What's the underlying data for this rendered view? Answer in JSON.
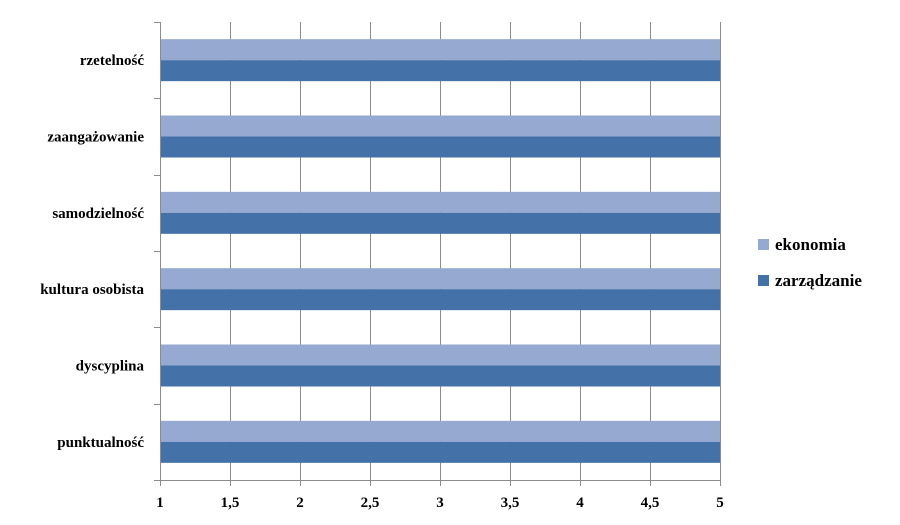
{
  "chart_data": {
    "type": "bar",
    "orientation": "horizontal",
    "categories": [
      "punktualność",
      "dyscyplina",
      "kultura osobista",
      "samodzielność",
      "zaangażowanie",
      "rzetelność"
    ],
    "series": [
      {
        "name": "ekonomia",
        "values": [
          5,
          5,
          5,
          5,
          5,
          5
        ],
        "color": "#95a9d1"
      },
      {
        "name": "zarządzanie",
        "values": [
          5,
          5,
          5,
          5,
          5,
          5
        ],
        "color": "#4472a8"
      }
    ],
    "xlim": [
      1,
      5
    ],
    "x_ticks": [
      1,
      1.5,
      2,
      2.5,
      3,
      3.5,
      4,
      4.5,
      5
    ],
    "x_tick_labels": [
      "1",
      "1,5",
      "2",
      "2,5",
      "3",
      "3,5",
      "4",
      "4,5",
      "5"
    ],
    "grid": "vertical",
    "legend_position": "right"
  }
}
